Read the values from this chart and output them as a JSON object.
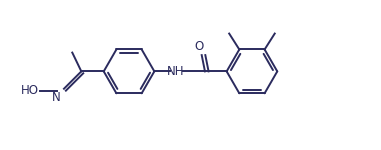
{
  "bg_color": "#ffffff",
  "line_color": "#2b2b5e",
  "line_width": 1.4,
  "font_size": 8.5,
  "figsize": [
    3.81,
    1.5
  ],
  "dpi": 100,
  "xlim": [
    0,
    10.5
  ],
  "ylim": [
    0,
    4.0
  ]
}
